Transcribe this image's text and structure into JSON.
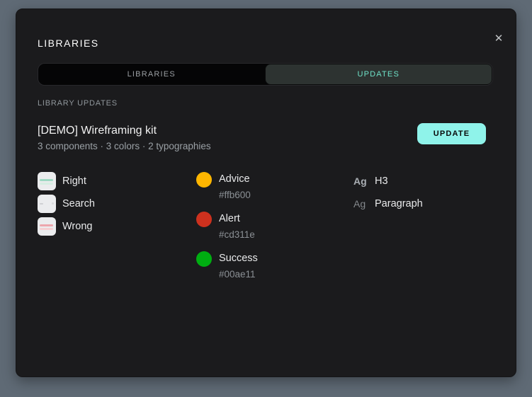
{
  "theme": {
    "backdrop_color": "#5f6a75",
    "modal_background": "#1b1b1d",
    "accent_color": "#8ff3ea",
    "active_tab_text_color": "#6fe2c8",
    "active_tab_background": "#2d3331"
  },
  "modal": {
    "title": "LIBRARIES",
    "close_icon": "✕",
    "tabs": [
      {
        "label": "LIBRARIES",
        "active": false
      },
      {
        "label": "UPDATES",
        "active": true
      }
    ],
    "section_label": "LIBRARY UPDATES",
    "library": {
      "name": "[DEMO] Wireframing kit",
      "summary": "3 components · 3 colors · 2 typographies",
      "update_button_label": "UPDATE"
    },
    "components": [
      {
        "name": "Right",
        "thumbnail": "two-teal-lines"
      },
      {
        "name": "Search",
        "thumbnail": "search-field-wireframe"
      },
      {
        "name": "Wrong",
        "thumbnail": "two-red-lines"
      }
    ],
    "colors": [
      {
        "name": "Advice",
        "hex": "#ffb600"
      },
      {
        "name": "Alert",
        "hex": "#cd311e"
      },
      {
        "name": "Success",
        "hex": "#00ae11"
      }
    ],
    "typographies": [
      {
        "sample": "Ag",
        "name": "H3",
        "weight": "bold"
      },
      {
        "sample": "Ag",
        "name": "Paragraph",
        "weight": "regular"
      }
    ]
  }
}
